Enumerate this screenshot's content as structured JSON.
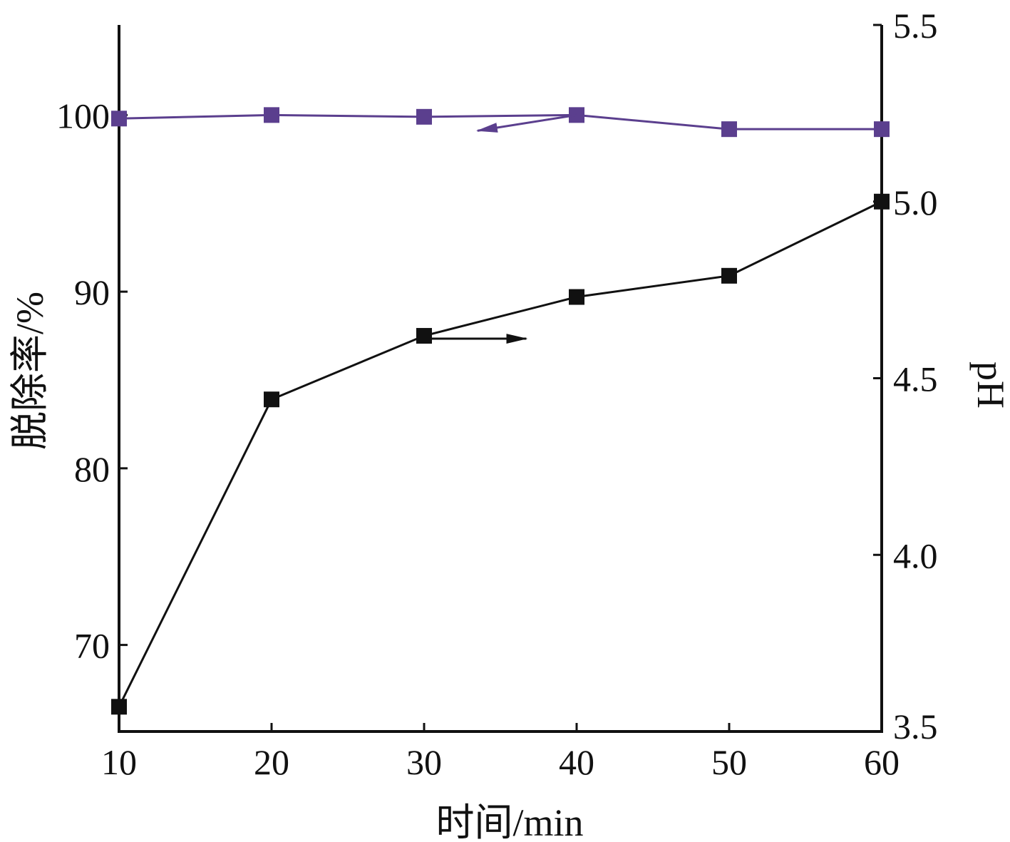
{
  "chart_data": {
    "type": "line",
    "x": [
      10,
      20,
      30,
      40,
      50,
      60
    ],
    "xlim": [
      10,
      60
    ],
    "xticks": [
      "10",
      "20",
      "30",
      "40",
      "50",
      "60"
    ],
    "xlabel": "时间/min",
    "ylabel_left": "脱除率/%",
    "ylim_left": [
      65.1,
      105.1
    ],
    "yticks_left": [
      "70",
      "80",
      "90",
      "100"
    ],
    "ylabel_right": "pH",
    "ylim_right": [
      3.5,
      5.5
    ],
    "yticks_right": [
      "3.5",
      "4.0",
      "4.5",
      "5.0",
      "5.5"
    ],
    "grid": false,
    "legend": "none",
    "series": [
      {
        "axis": "left",
        "color": "#5b3f8e",
        "marker": "square",
        "values": [
          99.8,
          100.0,
          99.9,
          100.0,
          99.2,
          99.2
        ],
        "arrow": "points-left"
      },
      {
        "axis": "right",
        "color": "#111111",
        "marker": "square",
        "values": [
          3.57,
          4.44,
          4.62,
          4.73,
          4.79,
          5.0
        ],
        "arrow": "points-right"
      }
    ]
  }
}
